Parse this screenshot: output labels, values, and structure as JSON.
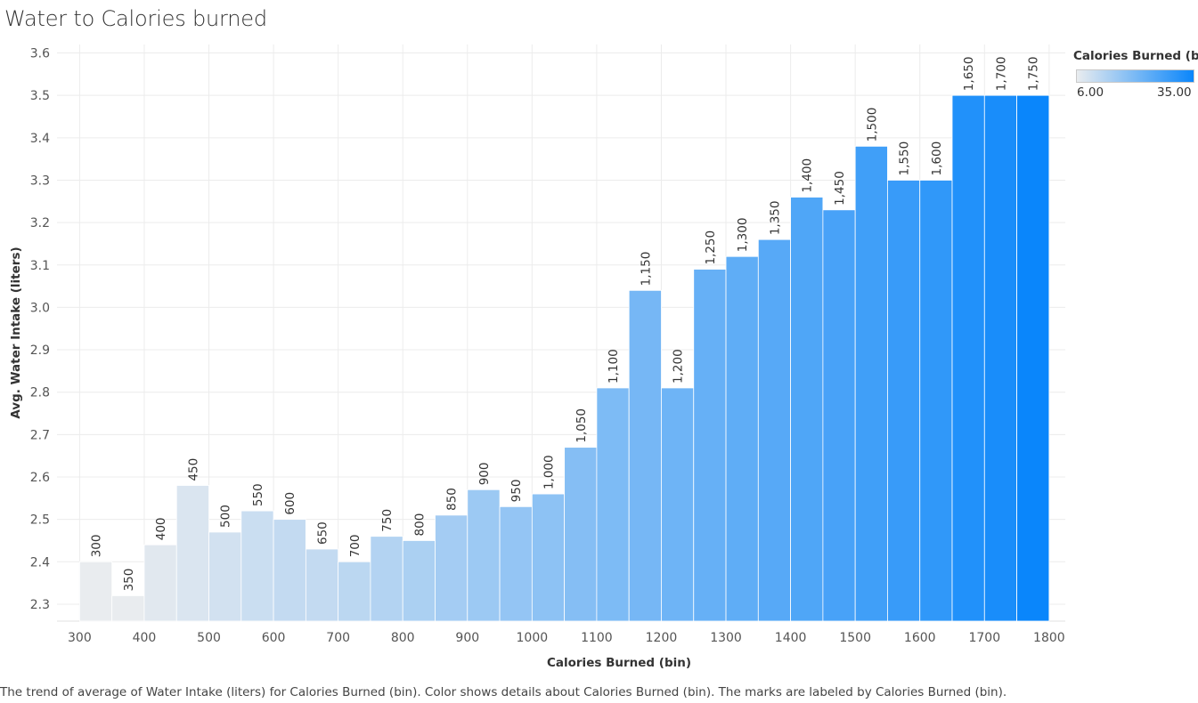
{
  "title": "Water to Calories burned",
  "caption": "The trend of average of Water Intake (liters) for Calories Burned (bin).  Color shows details about Calories Burned (bin).  The marks are labeled by Calories Burned (bin).",
  "legend": {
    "title": "Calories Burned (b..",
    "min_label": "6.00",
    "max_label": "35.00",
    "color_low": "#e9ecef",
    "color_high": "#0a86fb"
  },
  "chart_data": {
    "type": "bar",
    "title": "Water to Calories burned",
    "xlabel": "Calories Burned (bin)",
    "ylabel": "Avg. Water Intake (liters)",
    "ylim": [
      2.26,
      3.62
    ],
    "xlim": [
      265,
      1825
    ],
    "grid": true,
    "bin_width": 50,
    "y_ticks": [
      "2.3",
      "2.4",
      "2.5",
      "2.6",
      "2.7",
      "2.8",
      "2.9",
      "3.0",
      "3.1",
      "3.2",
      "3.3",
      "3.4",
      "3.5",
      "3.6"
    ],
    "x_ticks": [
      "300",
      "400",
      "500",
      "600",
      "700",
      "800",
      "900",
      "1000",
      "1100",
      "1200",
      "1300",
      "1400",
      "1500",
      "1600",
      "1700",
      "1800"
    ],
    "bins": [
      300,
      350,
      400,
      450,
      500,
      550,
      600,
      650,
      700,
      750,
      800,
      850,
      900,
      950,
      1000,
      1050,
      1100,
      1150,
      1200,
      1250,
      1300,
      1350,
      1400,
      1450,
      1500,
      1550,
      1600,
      1650,
      1700,
      1750
    ],
    "labels": [
      "300",
      "350",
      "400",
      "450",
      "500",
      "550",
      "600",
      "650",
      "700",
      "750",
      "800",
      "850",
      "900",
      "950",
      "1,000",
      "1,050",
      "1,100",
      "1,150",
      "1,200",
      "1,250",
      "1,300",
      "1,350",
      "1,400",
      "1,450",
      "1,500",
      "1,550",
      "1,600",
      "1,650",
      "1,700",
      "1,750"
    ],
    "values": [
      2.4,
      2.32,
      2.44,
      2.58,
      2.47,
      2.52,
      2.5,
      2.43,
      2.4,
      2.46,
      2.45,
      2.51,
      2.57,
      2.53,
      2.56,
      2.67,
      2.81,
      3.04,
      2.81,
      3.09,
      3.12,
      3.16,
      3.26,
      3.23,
      3.38,
      3.3,
      3.3,
      3.5,
      3.5,
      3.5
    ],
    "color_values": [
      6,
      6,
      7,
      8,
      9,
      10,
      11,
      11,
      12,
      13,
      14,
      15,
      16,
      17,
      18,
      19,
      20,
      21,
      22,
      23,
      24,
      25,
      26,
      27,
      28,
      29,
      30,
      32,
      33,
      35
    ]
  }
}
